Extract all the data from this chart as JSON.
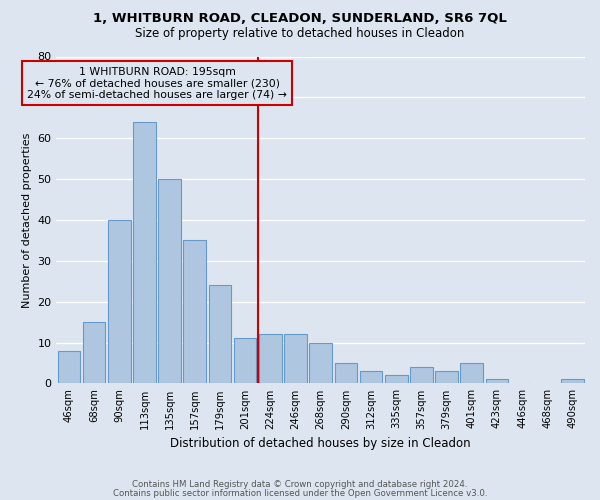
{
  "title": "1, WHITBURN ROAD, CLEADON, SUNDERLAND, SR6 7QL",
  "subtitle": "Size of property relative to detached houses in Cleadon",
  "xlabel": "Distribution of detached houses by size in Cleadon",
  "ylabel": "Number of detached properties",
  "categories": [
    "46sqm",
    "68sqm",
    "90sqm",
    "113sqm",
    "135sqm",
    "157sqm",
    "179sqm",
    "201sqm",
    "224sqm",
    "246sqm",
    "268sqm",
    "290sqm",
    "312sqm",
    "335sqm",
    "357sqm",
    "379sqm",
    "401sqm",
    "423sqm",
    "446sqm",
    "468sqm",
    "490sqm"
  ],
  "values": [
    8,
    15,
    40,
    64,
    50,
    35,
    24,
    11,
    12,
    12,
    10,
    5,
    3,
    2,
    4,
    3,
    5,
    1,
    0,
    0,
    1
  ],
  "bar_color": "#aec6e0",
  "bar_edge_color": "#6699cc",
  "background_color": "#dde6f0",
  "grid_color": "#ffffff",
  "ylim": [
    0,
    80
  ],
  "yticks": [
    0,
    10,
    20,
    30,
    40,
    50,
    60,
    70,
    80
  ],
  "property_label": "1 WHITBURN ROAD: 195sqm",
  "annotation_line1": "← 76% of detached houses are smaller (230)",
  "annotation_line2": "24% of semi-detached houses are larger (74) →",
  "annotation_box_color": "#cc0000",
  "vline_x_index": 7.5,
  "footer1": "Contains HM Land Registry data © Crown copyright and database right 2024.",
  "footer2": "Contains public sector information licensed under the Open Government Licence v3.0."
}
